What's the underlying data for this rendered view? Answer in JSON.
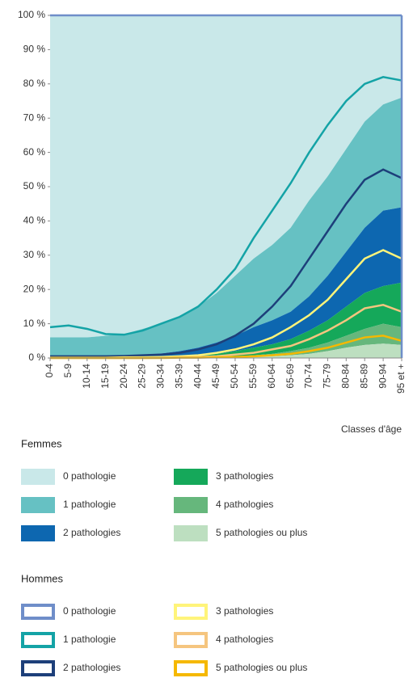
{
  "chart_data": {
    "type": "stacked-area",
    "xlabel": "Classes d'âge",
    "categories": [
      "0-4",
      "5-9",
      "10-14",
      "15-19",
      "20-24",
      "25-29",
      "30-34",
      "35-39",
      "40-44",
      "45-49",
      "50-54",
      "55-59",
      "60-64",
      "65-69",
      "70-74",
      "75-79",
      "80-84",
      "85-89",
      "90-94",
      "95 et +"
    ],
    "ylim": [
      0,
      100
    ],
    "yticks": [
      {
        "value": 0,
        "label": "0 %"
      },
      {
        "value": 10,
        "label": "10 %"
      },
      {
        "value": 20,
        "label": "20 %"
      },
      {
        "value": 30,
        "label": "30 %"
      },
      {
        "value": 40,
        "label": "40 %"
      },
      {
        "value": 50,
        "label": "50 %"
      },
      {
        "value": 60,
        "label": "60 %"
      },
      {
        "value": 70,
        "label": "70 %"
      },
      {
        "value": 80,
        "label": "80 %"
      },
      {
        "value": 90,
        "label": "90 %"
      },
      {
        "value": 100,
        "label": "100 %"
      }
    ],
    "groups": [
      {
        "title": "Femmes",
        "style": "area",
        "series": [
          {
            "name": "0 pathologie",
            "color": "#c9e8e9",
            "values": [
              94,
              94,
              94,
              93.5,
              93,
              91.5,
              90,
              88,
              85,
              81,
              76,
              71,
              67,
              62,
              54,
              47,
              39,
              31,
              26,
              24
            ]
          },
          {
            "name": "1 pathologie",
            "color": "#66c1c3",
            "values": [
              5.5,
              5.5,
              5.5,
              5.9,
              6.2,
              7.5,
              8.7,
              10,
              12,
              14.5,
              17.5,
              20,
              22,
              24.5,
              28,
              29,
              30,
              31,
              31,
              32
            ]
          },
          {
            "name": "2 pathologies",
            "color": "#0d67b0",
            "values": [
              0.4,
              0.4,
              0.4,
              0.5,
              0.6,
              0.8,
              1,
              1.5,
              2.2,
              3.3,
              4.5,
              6,
              7,
              8,
              10,
              13,
              16,
              19,
              22,
              22
            ]
          },
          {
            "name": "3 pathologies",
            "color": "#15a85a",
            "values": [
              0.1,
              0.1,
              0.1,
              0.1,
              0.2,
              0.2,
              0.2,
              0.4,
              0.6,
              0.9,
              1.5,
              2.2,
              2.8,
              3.5,
              5,
              6.5,
              8.5,
              10.5,
              11,
              13
            ]
          },
          {
            "name": "4 pathologies",
            "color": "#66b77c",
            "values": [
              0,
              0,
              0,
              0,
              0,
              0,
              0.1,
              0.1,
              0.1,
              0.2,
              0.3,
              0.5,
              0.7,
              1.2,
              1.8,
              2.5,
              3.5,
              4.7,
              5.8,
              5.2
            ]
          },
          {
            "name": "5 pathologies ou plus",
            "color": "#bddfc0",
            "values": [
              0,
              0,
              0,
              0,
              0,
              0,
              0,
              0,
              0.1,
              0.1,
              0.2,
              0.3,
              0.5,
              0.8,
              1.2,
              2,
              3,
              3.8,
              4.2,
              3.8
            ]
          }
        ]
      },
      {
        "title": "Hommes",
        "style": "line",
        "series": [
          {
            "name": "0 pathologie",
            "color": "#6f8ec9",
            "values": [
              91,
              90.5,
              91.5,
              93,
              93.2,
              92,
              90,
              88,
              85,
              80,
              74,
              65,
              57,
              49,
              40,
              32,
              25,
              20,
              18,
              19
            ]
          },
          {
            "name": "1 pathologie",
            "color": "#14a3a6",
            "values": [
              8.5,
              9,
              8,
              6.5,
              6.2,
              7.2,
              9,
              10.5,
              12.5,
              16,
              19.5,
              25,
              28,
              30,
              31,
              31,
              30,
              28,
              27,
              28.5
            ]
          },
          {
            "name": "2 pathologies",
            "color": "#1d3f7a",
            "values": [
              0.4,
              0.4,
              0.4,
              0.4,
              0.4,
              0.6,
              0.7,
              1,
              1.7,
              2.5,
              4,
              6,
              9,
              12,
              16.5,
              20,
              22,
              23,
              23.5,
              23.5
            ]
          },
          {
            "name": "3 pathologies",
            "color": "#fff47a",
            "values": [
              0.1,
              0.1,
              0.1,
              0.1,
              0.2,
              0.2,
              0.2,
              0.3,
              0.5,
              1,
              1.5,
              2.5,
              3.5,
              5.5,
              7,
              9,
              12,
              14.5,
              16,
              15.5
            ]
          },
          {
            "name": "4 pathologies",
            "color": "#f5c57f",
            "values": [
              0,
              0,
              0,
              0,
              0,
              0,
              0.1,
              0.1,
              0.2,
              0.3,
              0.7,
              1,
              1.7,
              2.3,
              3.5,
              5,
              6.5,
              8.5,
              9,
              8.5
            ]
          },
          {
            "name": "5 pathologies ou plus",
            "color": "#f5b800",
            "values": [
              0,
              0,
              0,
              0,
              0,
              0,
              0,
              0.1,
              0.1,
              0.2,
              0.3,
              0.5,
              0.8,
              1.2,
              2,
              3,
              4.5,
              6,
              6.5,
              5
            ]
          }
        ]
      }
    ]
  }
}
